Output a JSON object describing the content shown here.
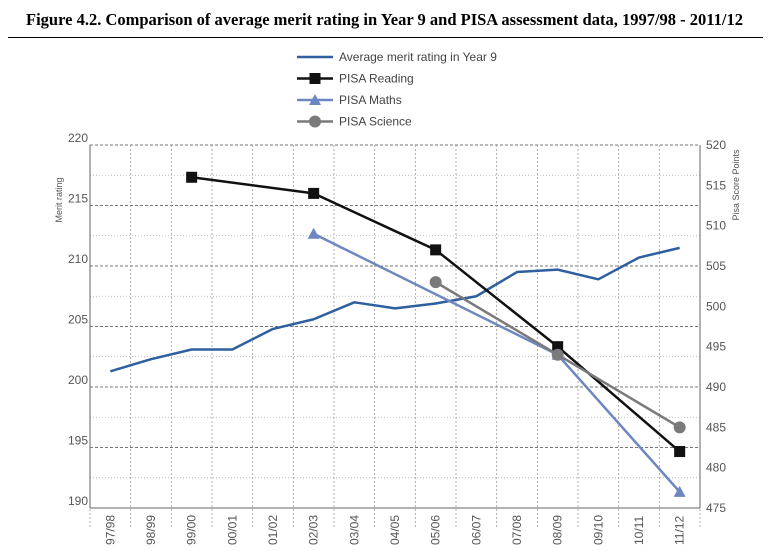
{
  "title": "Figure 4.2. Comparison of average merit rating in Year 9 and PISA assessment data, 1997/98 - 2011/12",
  "chart_data": {
    "type": "line",
    "title": "Figure 4.2. Comparison of average merit rating in Year 9 and PISA assessment data, 1997/98 - 2011/12",
    "categories": [
      "97/98",
      "98/99",
      "99/00",
      "00/01",
      "01/02",
      "02/03",
      "03/04",
      "04/05",
      "05/06",
      "06/07",
      "07/08",
      "08/09",
      "09/10",
      "10/11",
      "11/12"
    ],
    "ylabel": "Merit rating",
    "ylim": [
      190,
      220
    ],
    "yticks": [
      "190",
      "195",
      "200",
      "205",
      "210",
      "215",
      "220"
    ],
    "y2label": "Pisa Score Points",
    "y2lim": [
      475,
      520
    ],
    "y2ticks": [
      "475",
      "480",
      "485",
      "490",
      "495",
      "500",
      "505",
      "510",
      "515",
      "520"
    ],
    "grid": true,
    "legend_position": "top-center",
    "series": [
      {
        "name": "Average merit rating in Year 9",
        "axis": "left",
        "color": "#2e5f9e",
        "marker": "none",
        "values": [
          201.3,
          202.3,
          203.1,
          203.1,
          204.8,
          205.6,
          207.0,
          206.5,
          206.9,
          207.5,
          209.5,
          209.7,
          208.9,
          210.7,
          211.5
        ]
      },
      {
        "name": "PISA Reading",
        "axis": "right",
        "color": "#111111",
        "marker": "square",
        "values": [
          null,
          null,
          516,
          null,
          null,
          514,
          null,
          null,
          507,
          null,
          null,
          495,
          null,
          null,
          482
        ]
      },
      {
        "name": "PISA Maths",
        "axis": "right",
        "color": "#6e87c2",
        "marker": "triangle",
        "values": [
          null,
          null,
          null,
          null,
          null,
          509,
          null,
          null,
          null,
          null,
          null,
          494,
          null,
          null,
          477
        ]
      },
      {
        "name": "PISA Science",
        "axis": "right",
        "color": "#7a7a7a",
        "marker": "circle",
        "values": [
          null,
          null,
          null,
          null,
          null,
          null,
          null,
          null,
          503,
          null,
          null,
          494,
          null,
          null,
          485
        ]
      }
    ]
  }
}
